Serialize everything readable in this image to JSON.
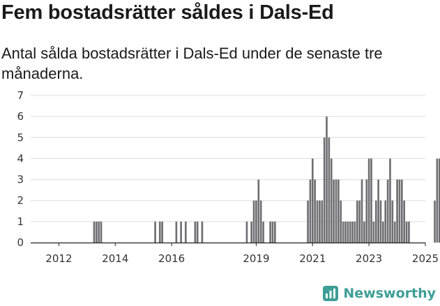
{
  "brand": {
    "name": "Newsworthy",
    "color": "#3e9e96"
  },
  "chart_data": {
    "type": "bar",
    "title": "Fem bostadsrätter såldes i Dals-Ed",
    "subtitle": "Antal sålda bostadsrätter i Dals-Ed under de senaste tre månaderna.",
    "ylim": [
      0,
      7
    ],
    "yticks": [
      0,
      1,
      2,
      3,
      4,
      5,
      6,
      7
    ],
    "xticks": [
      "2012",
      "2014",
      "2016",
      "2019",
      "2021",
      "2023",
      "2025"
    ],
    "x_start": "2011-07",
    "x_end": "2025-07",
    "grid": true,
    "bar_color": "#6e6e73",
    "highlight_color": "#2e9e8e",
    "highlight_label": "5",
    "series": [
      {
        "values": [
          0,
          0,
          0,
          0,
          0,
          0,
          0,
          0,
          0,
          0,
          0,
          0,
          0,
          0,
          0,
          0,
          0,
          0,
          0,
          0,
          0,
          0,
          0,
          0,
          0,
          0,
          0,
          1,
          1,
          1,
          1,
          0,
          0,
          0,
          0,
          0,
          0,
          0,
          0,
          0,
          0,
          0,
          0,
          0,
          0,
          0,
          0,
          0,
          0,
          0,
          0,
          0,
          0,
          1,
          0,
          1,
          1,
          0,
          0,
          0,
          0,
          0,
          1,
          0,
          1,
          0,
          1,
          0,
          0,
          0,
          1,
          1,
          0,
          1,
          0,
          0,
          0,
          0,
          0,
          0,
          0,
          0,
          0,
          0,
          0,
          0,
          0,
          0,
          0,
          0,
          0,
          0,
          1,
          0,
          1,
          2,
          2,
          3,
          2,
          1,
          0,
          0,
          1,
          1,
          1,
          0,
          0,
          0,
          0,
          0,
          0,
          0,
          0,
          0,
          0,
          0,
          0,
          0,
          2,
          3,
          4,
          3,
          2,
          2,
          2,
          5,
          6,
          5,
          4,
          3,
          3,
          3,
          2,
          1,
          1,
          1,
          1,
          1,
          1,
          2,
          2,
          3,
          1,
          3,
          4,
          4,
          1,
          2,
          3,
          2,
          1,
          2,
          3,
          4,
          2,
          1,
          3,
          3,
          3,
          2,
          1,
          1,
          0,
          0,
          0,
          0,
          0,
          0,
          0,
          0,
          0,
          0,
          2,
          4,
          4,
          2,
          0,
          1,
          2,
          1,
          1,
          1,
          1,
          1,
          2,
          2,
          1,
          1,
          1,
          2,
          1,
          2,
          1,
          2,
          1,
          2,
          2,
          6,
          4,
          4,
          1,
          3,
          2,
          4,
          4,
          1,
          3,
          4,
          6,
          4,
          1,
          3,
          1,
          1,
          1,
          0,
          0,
          0,
          1,
          2,
          1,
          1,
          3,
          4,
          1,
          4,
          1,
          0,
          0,
          2,
          3,
          3,
          4,
          1,
          1,
          1,
          2,
          1,
          3,
          2,
          5,
          0,
          0
        ]
      }
    ]
  }
}
